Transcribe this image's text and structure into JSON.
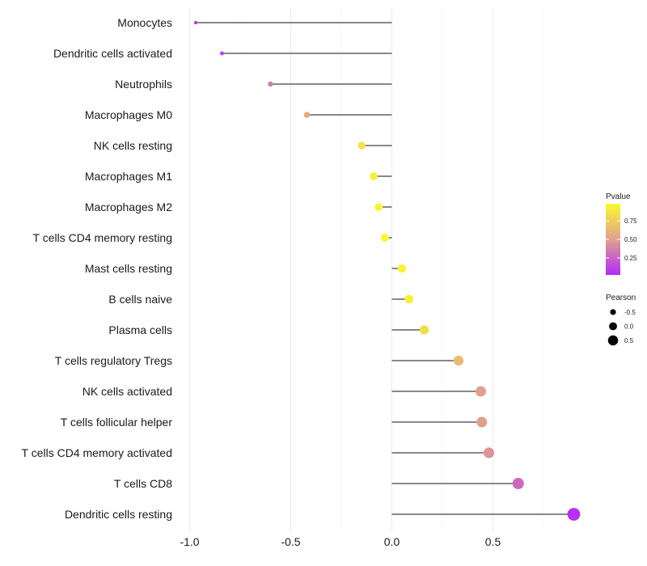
{
  "chart_data": {
    "type": "lollipop",
    "title": "",
    "xlabel": "",
    "ylabel": "",
    "xlim": [
      -1.0,
      0.9
    ],
    "xticks": [
      -1.0,
      -0.5,
      0.0,
      0.5
    ],
    "xtick_labels": [
      "-1.0",
      "-0.5",
      "0.0",
      "0.5"
    ],
    "grid": true,
    "baseline": 0.0,
    "points": [
      {
        "label": "Monocytes",
        "pearson": -0.97,
        "pvalue": 0.05
      },
      {
        "label": "Dendritic cells activated",
        "pearson": -0.84,
        "pvalue": 0.12
      },
      {
        "label": "Neutrophils",
        "pearson": -0.6,
        "pvalue": 0.35
      },
      {
        "label": "Macrophages M0",
        "pearson": -0.42,
        "pvalue": 0.55
      },
      {
        "label": "NK cells resting",
        "pearson": -0.15,
        "pvalue": 0.85
      },
      {
        "label": "Macrophages M1",
        "pearson": -0.09,
        "pvalue": 0.92
      },
      {
        "label": "Macrophages M2",
        "pearson": -0.065,
        "pvalue": 0.95
      },
      {
        "label": "T cells CD4 memory resting",
        "pearson": -0.035,
        "pvalue": 0.97
      },
      {
        "label": "Mast cells resting",
        "pearson": 0.05,
        "pvalue": 0.95
      },
      {
        "label": "B cells naive",
        "pearson": 0.085,
        "pvalue": 0.92
      },
      {
        "label": "Plasma cells",
        "pearson": 0.16,
        "pvalue": 0.82
      },
      {
        "label": "T cells regulatory  Tregs ",
        "pearson": 0.33,
        "pvalue": 0.65
      },
      {
        "label": "NK cells activated",
        "pearson": 0.44,
        "pvalue": 0.5
      },
      {
        "label": "T cells follicular helper",
        "pearson": 0.445,
        "pvalue": 0.5
      },
      {
        "label": "T cells CD4 memory activated",
        "pearson": 0.48,
        "pvalue": 0.45
      },
      {
        "label": "T cells CD8",
        "pearson": 0.625,
        "pvalue": 0.28
      },
      {
        "label": "Dendritic cells resting",
        "pearson": 0.9,
        "pvalue": 0.05
      }
    ],
    "legend_color": {
      "title": "Pvalue",
      "ticks": [
        0.75,
        0.5,
        0.25
      ],
      "tick_labels": [
        "0.75",
        "0.50",
        "0.25"
      ],
      "range": [
        0.02,
        0.98
      ],
      "low_color": "#b429f9",
      "mid_color": "#e0a08e",
      "high_color": "#fafa2e",
      "placement": "right"
    },
    "legend_size": {
      "title": "Pearson",
      "values": [
        -0.5,
        0.0,
        0.5
      ],
      "labels": [
        "-0.5",
        "0.0",
        "0.5"
      ],
      "placement": "right"
    }
  }
}
